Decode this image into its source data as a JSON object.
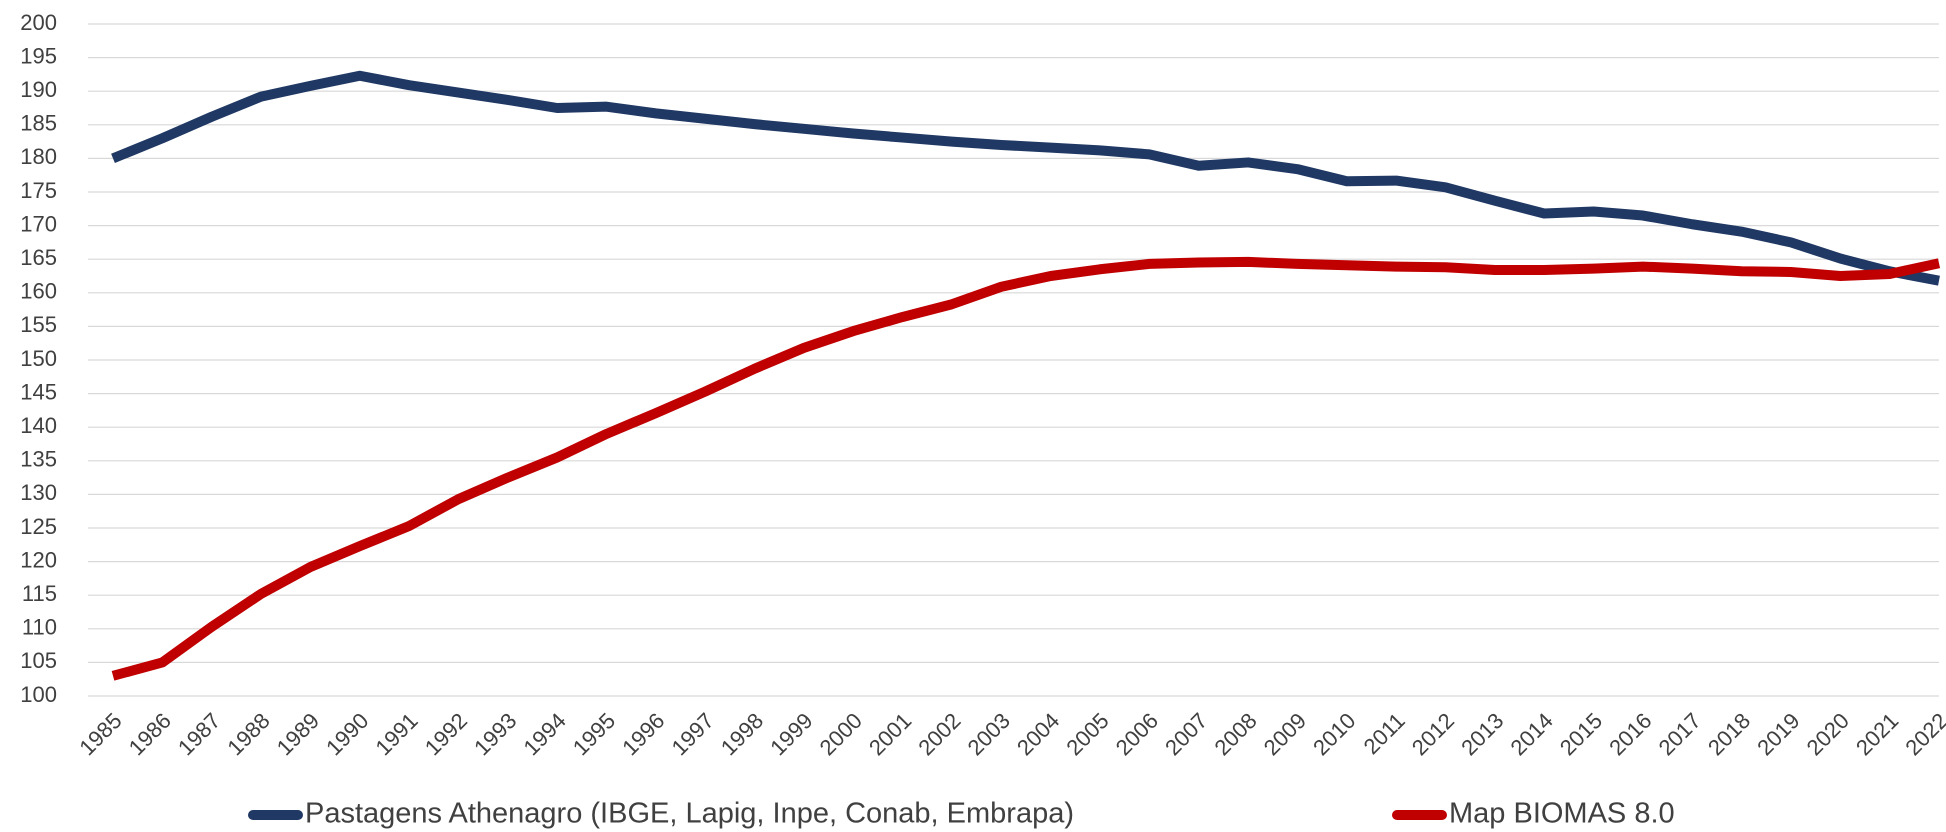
{
  "chart_data": {
    "type": "line",
    "categories": [
      "1985",
      "1986",
      "1987",
      "1988",
      "1989",
      "1990",
      "1991",
      "1992",
      "1993",
      "1994",
      "1995",
      "1996",
      "1997",
      "1998",
      "1999",
      "2000",
      "2001",
      "2002",
      "2003",
      "2004",
      "2005",
      "2006",
      "2007",
      "2008",
      "2009",
      "2010",
      "2011",
      "2012",
      "2013",
      "2014",
      "2015",
      "2016",
      "2017",
      "2018",
      "2019",
      "2020",
      "2021",
      "2022"
    ],
    "series": [
      {
        "name": "Pastagens Athenagro (IBGE, Lapig,  Inpe, Conab, Embrapa)",
        "color": "#203864",
        "values": [
          180,
          183,
          186.2,
          189.2,
          190.8,
          192.3,
          190.9,
          189.8,
          188.7,
          187.5,
          187.7,
          186.7,
          185.9,
          185.1,
          184.4,
          183.7,
          183.1,
          182.5,
          182,
          181.6,
          181.2,
          180.6,
          178.9,
          179.4,
          178.4,
          176.6,
          176.7,
          175.7,
          173.7,
          171.8,
          172.1,
          171.5,
          170.2,
          169.1,
          167.5,
          165.1,
          163.2,
          161.8
        ]
      },
      {
        "name": "Map BIOMAS 8.0",
        "color": "#c00000",
        "values": [
          103,
          105,
          110.3,
          115.2,
          119.2,
          122.3,
          125.3,
          129.3,
          132.5,
          135.5,
          139,
          142.1,
          145.3,
          148.7,
          151.8,
          154.3,
          156.4,
          158.3,
          160.9,
          162.5,
          163.5,
          164.3,
          164.5,
          164.6,
          164.3,
          164.1,
          163.9,
          163.8,
          163.4,
          163.4,
          163.6,
          163.9,
          163.6,
          163.2,
          163.1,
          162.5,
          162.8,
          164.4
        ]
      }
    ],
    "ylim": [
      100,
      200
    ],
    "yticks": [
      100,
      105,
      110,
      115,
      120,
      125,
      130,
      135,
      140,
      145,
      150,
      155,
      160,
      165,
      170,
      175,
      180,
      185,
      190,
      195,
      200
    ],
    "grid": true,
    "legend": "bottom"
  }
}
